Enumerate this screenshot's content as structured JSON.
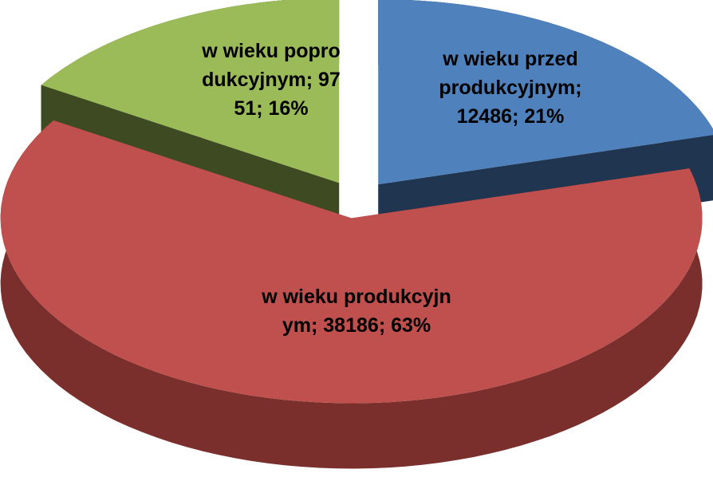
{
  "chart_data": {
    "type": "pie3d",
    "categories": [
      "w wieku przedprodukcyjnym",
      "w wieku produkcyjnym",
      "w wieku poprodukcyjnym"
    ],
    "values": [
      12486,
      38186,
      9751
    ],
    "percent_labels": [
      "21%",
      "63%",
      "16%"
    ],
    "label_separator": "; ",
    "colors": [
      "#4f81bd",
      "#c0504d",
      "#9bbb59"
    ],
    "side_colors": [
      "#1f3550",
      "#7a2f2d",
      "#3e4a22"
    ]
  }
}
